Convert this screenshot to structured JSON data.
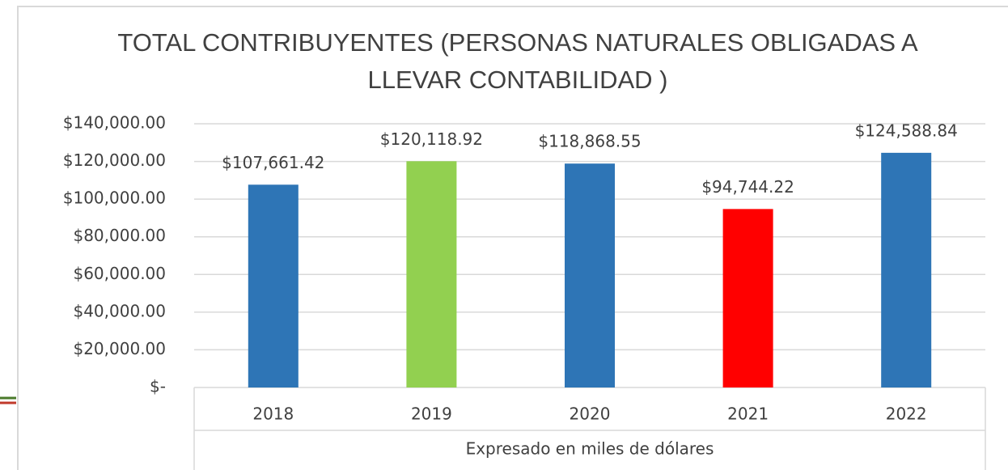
{
  "chart_data": {
    "type": "bar",
    "title": "TOTAL CONTRIBUYENTES (PERSONAS NATURALES OBLIGADAS A LLEVAR CONTABILIDAD )",
    "x_axis_label": "Expresado en miles de dólares",
    "categories": [
      "2018",
      "2019",
      "2020",
      "2021",
      "2022"
    ],
    "values": [
      107661.42,
      120118.92,
      118868.55,
      94744.22,
      124588.84
    ],
    "value_labels": [
      "$107,661.42",
      "$120,118.92",
      "$118,868.55",
      "$94,744.22",
      "$124,588.84"
    ],
    "colors": [
      "#2e75b6",
      "#92d050",
      "#2e75b6",
      "#ff0000",
      "#2e75b6"
    ],
    "ylim": [
      0,
      140000
    ],
    "yticks": [
      {
        "value": 0,
        "label": "$-"
      },
      {
        "value": 20000,
        "label": "$20,000.00"
      },
      {
        "value": 40000,
        "label": "$40,000.00"
      },
      {
        "value": 60000,
        "label": "$60,000.00"
      },
      {
        "value": 80000,
        "label": "$80,000.00"
      },
      {
        "value": 100000,
        "label": "$100,000.00"
      },
      {
        "value": 120000,
        "label": "$120,000.00"
      },
      {
        "value": 140000,
        "label": "$140,000.00"
      }
    ],
    "grid": true
  }
}
